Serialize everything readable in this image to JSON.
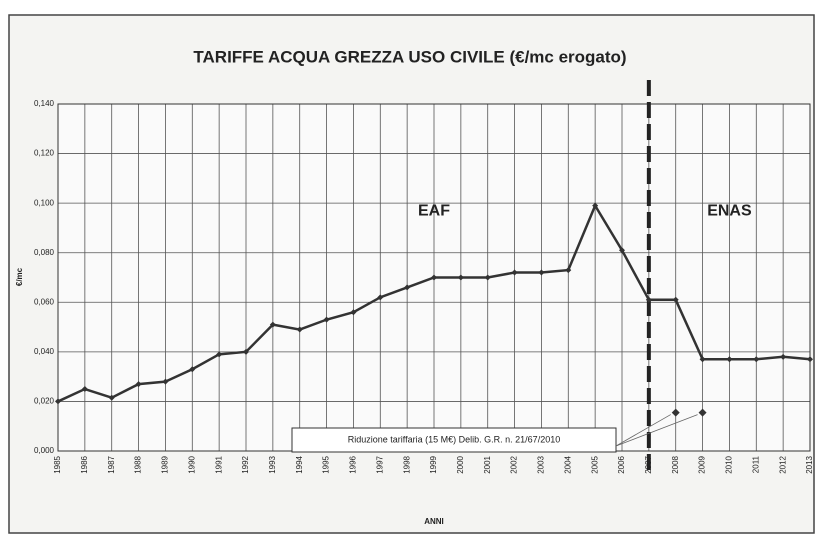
{
  "chart_data": {
    "type": "line",
    "title": "TARIFFE ACQUA GREZZA USO CIVILE (€/mc erogato)",
    "y_label": "€/mc",
    "x_label": "ANNI",
    "x": [
      1985,
      1986,
      1987,
      1988,
      1989,
      1990,
      1991,
      1992,
      1993,
      1994,
      1995,
      1996,
      1997,
      1998,
      1999,
      2000,
      2001,
      2002,
      2003,
      2004,
      2005,
      2006,
      2007,
      2008,
      2009,
      2010,
      2011,
      2012,
      2013
    ],
    "series": [
      {
        "color": "#333333",
        "values": [
          0.02,
          0.025,
          0.0215,
          0.027,
          0.028,
          0.033,
          0.039,
          0.04,
          0.051,
          0.049,
          0.053,
          0.056,
          0.062,
          0.066,
          0.07,
          0.07,
          0.07,
          0.072,
          0.072,
          0.073,
          0.099,
          0.081,
          0.061,
          0.061,
          0.037,
          0.037,
          0.037,
          0.038,
          0.037
        ]
      }
    ],
    "xlim": [
      1985,
      2013
    ],
    "xticks": [
      1985,
      1986,
      1987,
      1988,
      1989,
      1990,
      1991,
      1992,
      1993,
      1994,
      1995,
      1996,
      1997,
      1998,
      1999,
      2000,
      2001,
      2002,
      2003,
      2004,
      2005,
      2006,
      2007,
      2008,
      2009,
      2010,
      2011,
      2012,
      2013
    ],
    "ylim": [
      0,
      0.14
    ],
    "yticks": [
      {
        "value": 0,
        "label": "0,000"
      },
      {
        "value": 0.02,
        "label": "0,020"
      },
      {
        "value": 0.04,
        "label": "0,040"
      },
      {
        "value": 0.06,
        "label": "0,060"
      },
      {
        "value": 0.08,
        "label": "0,080"
      },
      {
        "value": 0.1,
        "label": "0,100"
      },
      {
        "value": 0.12,
        "label": "0,120"
      },
      {
        "value": 0.14,
        "label": "0,140"
      }
    ],
    "grid": true,
    "divider_x": 2007,
    "annotations": [
      {
        "text": "EAF",
        "x": 1999,
        "y": 0.1
      },
      {
        "text": "ENAS",
        "x": 2010,
        "y": 0.1
      }
    ],
    "note": {
      "text": "Riduzione tariffaria (15 M€) Delib. G.R. n. 21/67/2010",
      "x": [
        2008,
        2009
      ],
      "values": [
        0.0155,
        0.0155
      ]
    }
  }
}
